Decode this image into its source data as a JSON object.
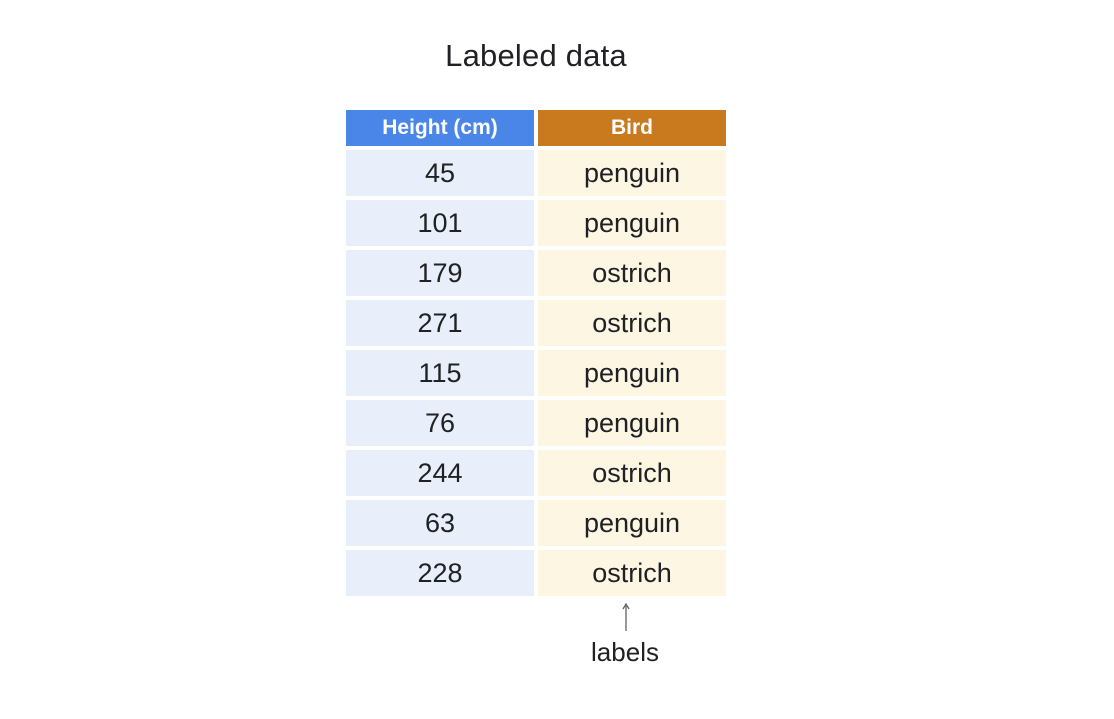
{
  "title": "Labeled data",
  "table": {
    "headers": [
      "Height (cm)",
      "Bird"
    ],
    "rows": [
      [
        "45",
        "penguin"
      ],
      [
        "101",
        "penguin"
      ],
      [
        "179",
        "ostrich"
      ],
      [
        "271",
        "ostrich"
      ],
      [
        "115",
        "penguin"
      ],
      [
        "76",
        "penguin"
      ],
      [
        "244",
        "ostrich"
      ],
      [
        "63",
        "penguin"
      ],
      [
        "228",
        "ostrich"
      ]
    ]
  },
  "annotation": {
    "text": "labels",
    "icon": "up-arrow-icon"
  },
  "colors": {
    "height_header": "#4a86e8",
    "bird_header": "#c97a1f",
    "height_cell": "#e8effa",
    "bird_cell": "#fdf6e3"
  }
}
